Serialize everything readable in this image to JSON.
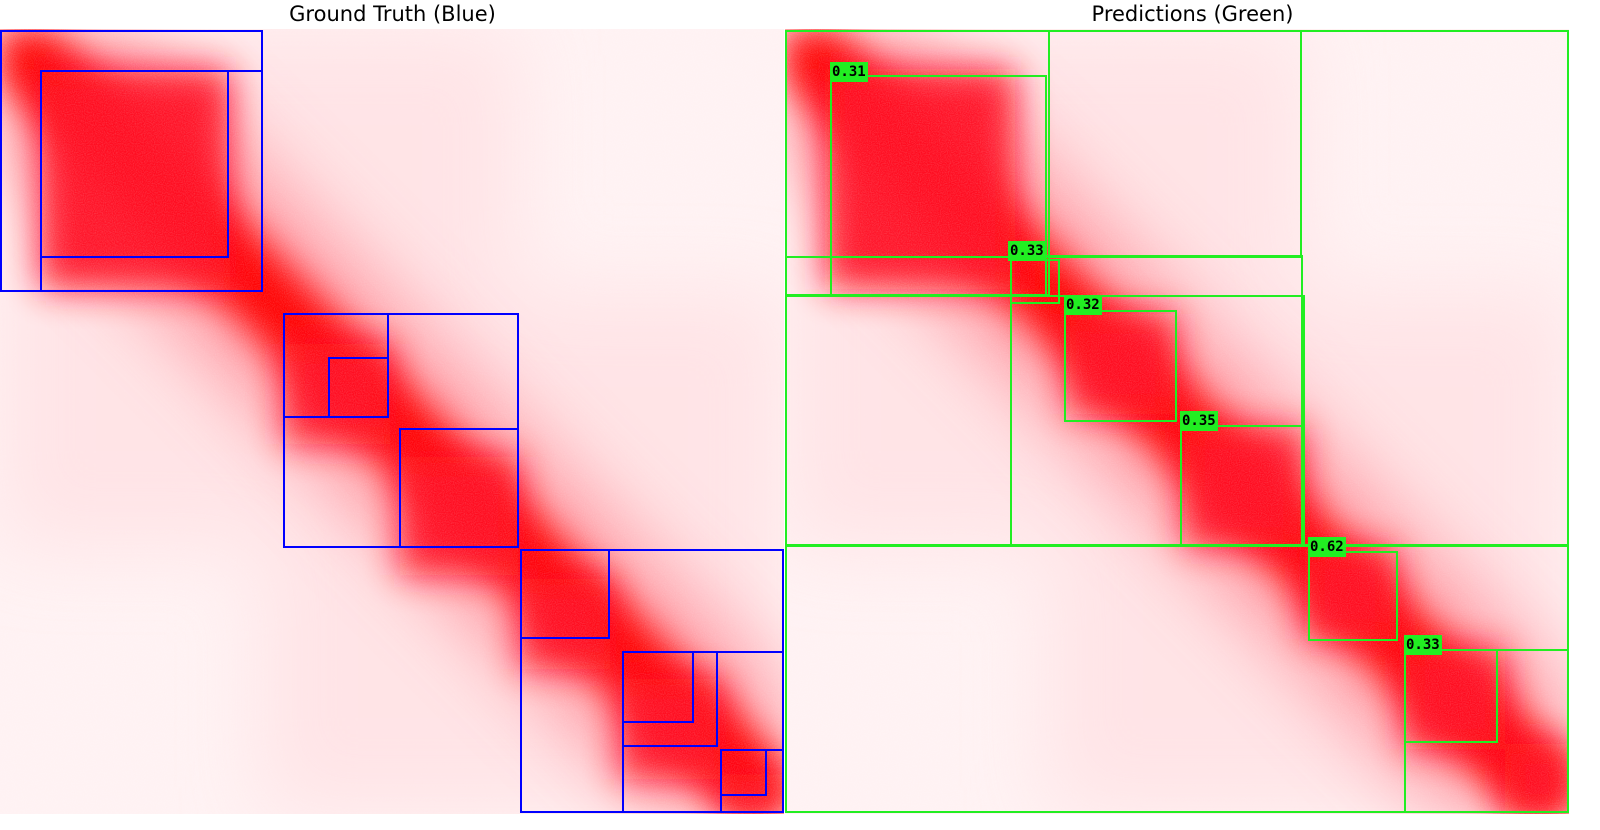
{
  "panels": {
    "ground_truth": {
      "title": "Ground Truth (Blue)"
    },
    "predictions": {
      "title": "Predictions (Green)"
    }
  },
  "colors": {
    "heat": "#ff0000",
    "ground_truth_box": "#0000ff",
    "prediction_box": "#22ee22",
    "background": "#ffffff"
  },
  "scores": [
    "0.31",
    "0.33",
    "0.32",
    "0.35",
    "0.62",
    "0.33"
  ]
}
